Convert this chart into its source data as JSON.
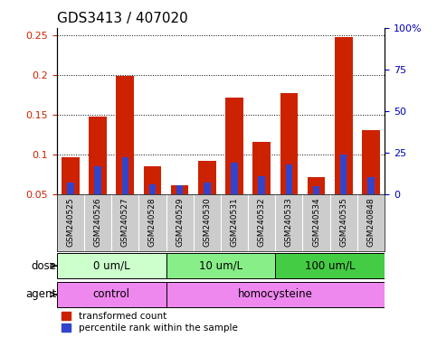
{
  "title": "GDS3413 / 407020",
  "samples": [
    "GSM240525",
    "GSM240526",
    "GSM240527",
    "GSM240528",
    "GSM240529",
    "GSM240530",
    "GSM240531",
    "GSM240532",
    "GSM240533",
    "GSM240534",
    "GSM240535",
    "GSM240848"
  ],
  "transformed_count": [
    0.097,
    0.148,
    0.199,
    0.085,
    0.062,
    0.092,
    0.172,
    0.116,
    0.178,
    0.072,
    0.248,
    0.131
  ],
  "percentile_rank": [
    0.065,
    0.085,
    0.097,
    0.063,
    0.062,
    0.065,
    0.09,
    0.073,
    0.088,
    0.06,
    0.1,
    0.072
  ],
  "bar_bottom": 0.05,
  "red_color": "#cc2200",
  "blue_color": "#3344cc",
  "ylim_left": [
    0.05,
    0.26
  ],
  "ylim_right": [
    0,
    100
  ],
  "yticks_left": [
    0.05,
    0.1,
    0.15,
    0.2,
    0.25
  ],
  "ytick_labels_left": [
    "0.05",
    "0.1",
    "0.15",
    "0.2",
    "0.25"
  ],
  "yticks_right": [
    0,
    25,
    50,
    75,
    100
  ],
  "ytick_labels_right": [
    "0",
    "25",
    "50",
    "75",
    "100%"
  ],
  "dose_groups": [
    {
      "label": "0 um/L",
      "start": 0,
      "end": 4,
      "color": "#ccffcc"
    },
    {
      "label": "10 um/L",
      "start": 4,
      "end": 8,
      "color": "#88ee88"
    },
    {
      "label": "100 um/L",
      "start": 8,
      "end": 12,
      "color": "#44cc44"
    }
  ],
  "agent_groups": [
    {
      "label": "control",
      "start": 0,
      "end": 4,
      "color": "#ee88ee"
    },
    {
      "label": "homocysteine",
      "start": 4,
      "end": 12,
      "color": "#ee88ee"
    }
  ],
  "dose_label": "dose",
  "agent_label": "agent",
  "legend_red": "transformed count",
  "legend_blue": "percentile rank within the sample",
  "background_color": "#ffffff",
  "sample_bg": "#cccccc",
  "title_fontsize": 11,
  "tick_fontsize": 8,
  "bar_fontsize": 7,
  "n_samples": 12
}
